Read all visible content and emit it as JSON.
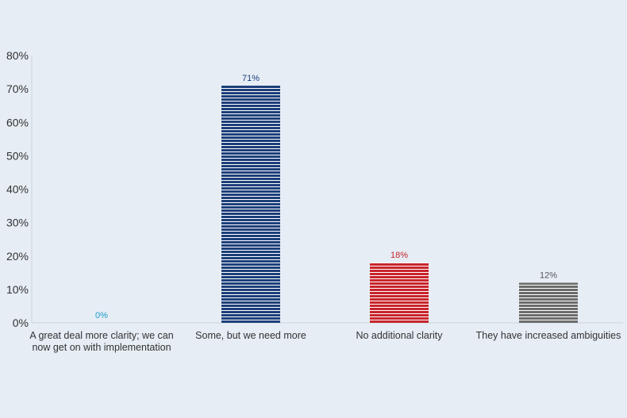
{
  "chart_data": {
    "type": "bar",
    "categories": [
      [
        "A great deal more clarity; we can",
        "now get on with implementation"
      ],
      [
        "Some, but we need more"
      ],
      [
        "No additional clarity"
      ],
      [
        "They have increased ambiguities"
      ]
    ],
    "values": [
      0,
      71,
      18,
      12
    ],
    "value_labels": [
      "0%",
      "71%",
      "18%",
      "12%"
    ],
    "bar_colors": [
      "#1f9bc9",
      "#1d3f7a",
      "#c8242b",
      "#6b6b6b"
    ],
    "label_colors": [
      "#1f9bc9",
      "#1d3f7a",
      "#c8242b",
      "#555555"
    ],
    "ylim": [
      0,
      80
    ],
    "yticks": [
      0,
      10,
      20,
      30,
      40,
      50,
      60,
      70,
      80
    ],
    "ytick_labels": [
      "0%",
      "10%",
      "20%",
      "30%",
      "40%",
      "50%",
      "60%",
      "70%",
      "80%"
    ],
    "bar_pattern": "horizontal-stripes",
    "grid": false,
    "title": "",
    "xlabel": "",
    "ylabel": ""
  }
}
